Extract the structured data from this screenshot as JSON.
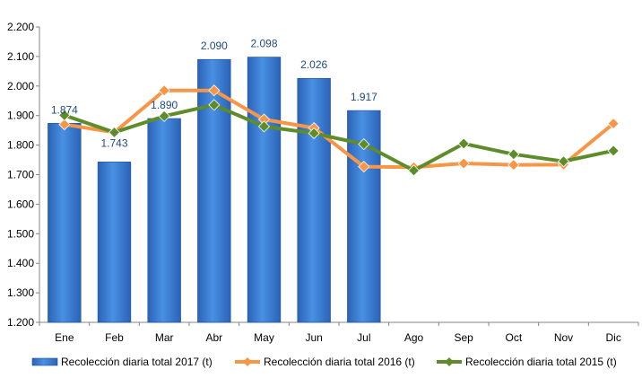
{
  "chart_data": {
    "type": "bar",
    "categories": [
      "Ene",
      "Feb",
      "Mar",
      "Abr",
      "May",
      "Jun",
      "Jul",
      "Ago",
      "Sep",
      "Oct",
      "Nov",
      "Dic"
    ],
    "ylim": [
      1200,
      2200
    ],
    "yticks": [
      1200,
      1300,
      1400,
      1500,
      1600,
      1700,
      1800,
      1900,
      2000,
      2100,
      2200
    ],
    "ytick_labels": [
      "1.200",
      "1.300",
      "1.400",
      "1.500",
      "1.600",
      "1.700",
      "1.800",
      "1.900",
      "2.000",
      "2.100",
      "2.200"
    ],
    "grid": "none",
    "legend_position": "bottom",
    "series": [
      {
        "name": "Recolección diaria total 2017 (t)",
        "kind": "bar",
        "color": "#3a7bd5",
        "values": [
          1874,
          1743,
          1890,
          2090,
          2098,
          2026,
          1917,
          null,
          null,
          null,
          null,
          null
        ],
        "labels": [
          "1.874",
          "1.743",
          "1.890",
          "2.090",
          "2.098",
          "2.026",
          "1.917",
          "",
          "",
          "",
          "",
          ""
        ]
      },
      {
        "name": "Recolección diaria total 2016 (t)",
        "kind": "line",
        "color": "#f79646",
        "marker": "diamond",
        "values": [
          1870,
          1843,
          1985,
          1985,
          1887,
          1858,
          1727,
          1725,
          1738,
          1733,
          1734,
          1873
        ]
      },
      {
        "name": "Recolección diaria total 2015 (t)",
        "kind": "line",
        "color": "#5f8c2a",
        "marker": "diamond",
        "values": [
          1901,
          1843,
          1898,
          1936,
          1863,
          1840,
          1803,
          1714,
          1805,
          1769,
          1745,
          1781
        ]
      }
    ]
  }
}
